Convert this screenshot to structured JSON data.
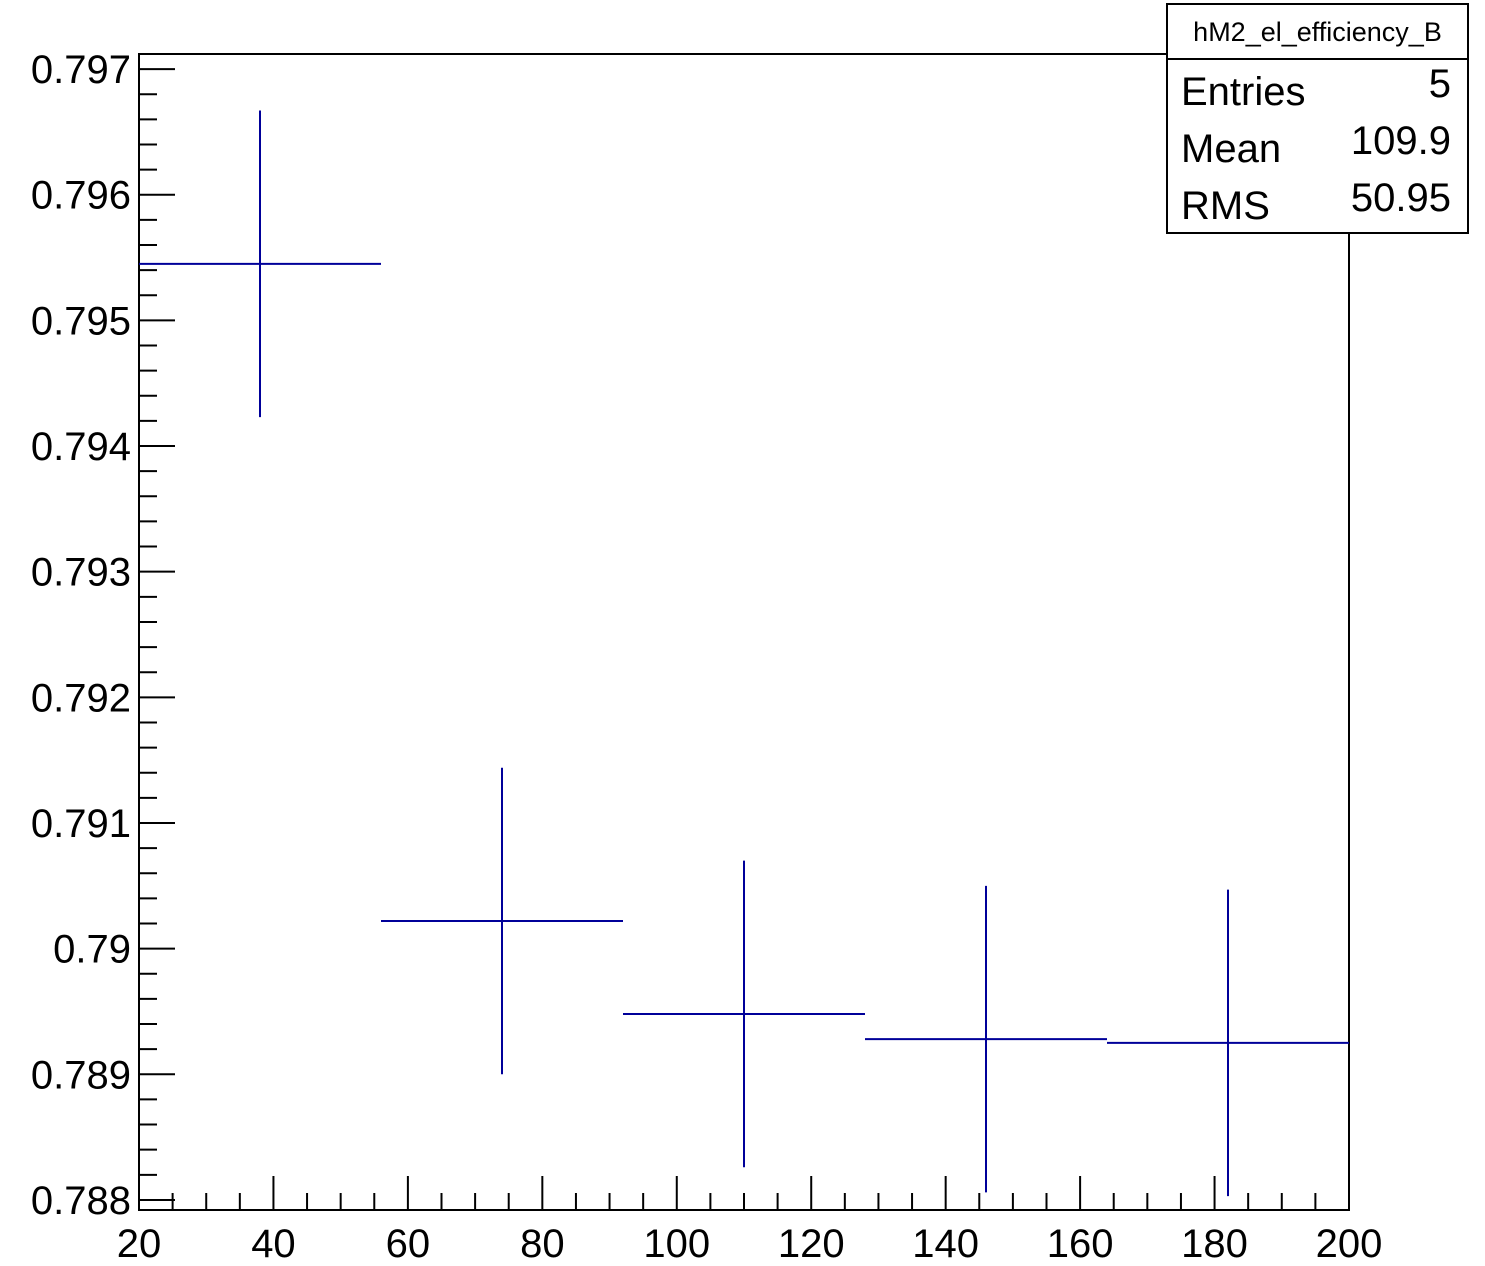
{
  "chart_data": {
    "type": "scatter",
    "title": "",
    "xlabel": "",
    "ylabel": "",
    "xlim": [
      20,
      200
    ],
    "ylim": [
      0.78792,
      0.79712
    ],
    "x_ticks": [
      20,
      40,
      60,
      80,
      100,
      120,
      140,
      160,
      180,
      200
    ],
    "y_ticks": [
      0.788,
      0.789,
      0.79,
      0.791,
      0.792,
      0.793,
      0.794,
      0.795,
      0.796,
      0.797
    ],
    "x_tick_labels": [
      "20",
      "40",
      "60",
      "80",
      "100",
      "120",
      "140",
      "160",
      "180",
      "200"
    ],
    "y_tick_labels": [
      "0.788",
      "0.789",
      "0.79",
      "0.791",
      "0.792",
      "0.793",
      "0.794",
      "0.795",
      "0.796",
      "0.797"
    ],
    "series": [
      {
        "color": "#000099",
        "points": [
          {
            "x": 38,
            "xlow": 20,
            "xhigh": 56,
            "y": 0.79545,
            "yerr": 0.00122
          },
          {
            "x": 74,
            "xlow": 56,
            "xhigh": 92,
            "y": 0.79022,
            "yerr": 0.00122
          },
          {
            "x": 110,
            "xlow": 92,
            "xhigh": 128,
            "y": 0.78948,
            "yerr": 0.00122
          },
          {
            "x": 146,
            "xlow": 128,
            "xhigh": 164,
            "y": 0.78928,
            "yerr": 0.00122
          },
          {
            "x": 182,
            "xlow": 164,
            "xhigh": 200,
            "y": 0.78925,
            "yerr": 0.00122
          }
        ]
      }
    ],
    "grid": false,
    "legend": "none"
  },
  "stats": {
    "title": "hM2_el_efficiency_B",
    "rows": [
      {
        "label": "Entries",
        "value": "5"
      },
      {
        "label": "Mean",
        "value": "109.9"
      },
      {
        "label": "RMS",
        "value": "50.95"
      }
    ]
  }
}
